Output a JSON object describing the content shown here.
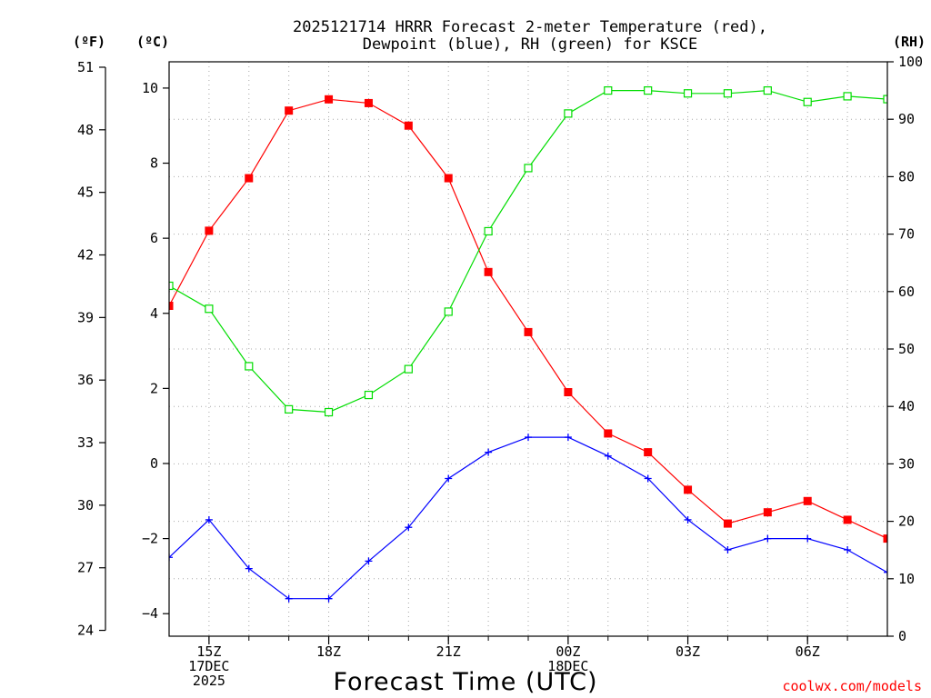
{
  "chart_data": {
    "type": "line",
    "title_lines": [
      "2025121714 HRRR Forecast 2-meter Temperature (red),",
      "Dewpoint (blue), RH (green) for KSCE"
    ],
    "xlabel": "Forecast Time (UTC)",
    "credit": "coolwx.com/models",
    "axes": {
      "left_f": {
        "unit_label": "(ºF)",
        "ticks": [
          24,
          27,
          30,
          33,
          36,
          39,
          42,
          45,
          48,
          51
        ]
      },
      "left_c": {
        "unit_label": "(ºC)",
        "ylim": [
          -4.6,
          10.7
        ],
        "ticks": [
          -4,
          -2,
          0,
          2,
          4,
          6,
          8,
          10
        ]
      },
      "right_rh": {
        "unit_label": "(RH)",
        "ylim": [
          0,
          100
        ],
        "ticks": [
          0,
          10,
          20,
          30,
          40,
          50,
          60,
          70,
          80,
          90,
          100
        ]
      }
    },
    "x_hours": [
      14,
      15,
      16,
      17,
      18,
      19,
      20,
      21,
      22,
      23,
      24,
      25,
      26,
      27,
      28,
      29,
      30,
      31,
      32
    ],
    "xlim": [
      14,
      32
    ],
    "x_ticks": [
      {
        "hour": 15,
        "lines": [
          "15Z",
          "17DEC",
          "2025"
        ]
      },
      {
        "hour": 18,
        "lines": [
          "18Z"
        ]
      },
      {
        "hour": 21,
        "lines": [
          "21Z"
        ]
      },
      {
        "hour": 24,
        "lines": [
          "00Z",
          "18DEC"
        ]
      },
      {
        "hour": 27,
        "lines": [
          "03Z"
        ]
      },
      {
        "hour": 30,
        "lines": [
          "06Z"
        ]
      }
    ],
    "series": [
      {
        "name": "Temperature",
        "axis": "left_c",
        "color": "#ff0000",
        "marker": "filled-square",
        "values": [
          4.2,
          6.2,
          7.6,
          9.4,
          9.7,
          9.6,
          9.0,
          7.6,
          5.1,
          3.5,
          1.9,
          0.8,
          0.3,
          -0.7,
          -1.6,
          -1.3,
          -1.0,
          -1.5,
          -2.0
        ]
      },
      {
        "name": "Dewpoint",
        "axis": "left_c",
        "color": "#0000ff",
        "marker": "plus",
        "values": [
          -2.5,
          -1.5,
          -2.8,
          -3.6,
          -3.6,
          -2.6,
          -1.7,
          -0.4,
          0.3,
          0.7,
          0.7,
          0.2,
          -0.4,
          -1.5,
          -2.3,
          -2.0,
          -2.0,
          -2.3,
          -2.9
        ]
      },
      {
        "name": "RH",
        "axis": "right_rh",
        "color": "#00dd00",
        "marker": "open-square",
        "values": [
          61,
          57,
          47,
          39.5,
          39,
          42,
          46.5,
          56.5,
          70.5,
          81.5,
          91,
          95,
          95,
          94.5,
          94.5,
          95,
          93,
          94,
          93.5
        ]
      }
    ]
  }
}
